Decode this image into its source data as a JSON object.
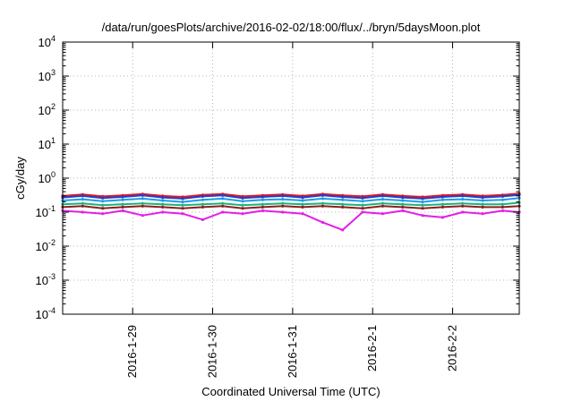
{
  "chart_data": {
    "type": "line",
    "title": "/data/run/goesPlots/archive/2016-02-02/18:00/flux/../bryn/5daysMoon.plot",
    "xlabel": "Coordinated Universal Time (UTC)",
    "ylabel": "cGy/day",
    "yscale": "log",
    "ylim": [
      0.0001,
      10000
    ],
    "xlim": [
      "2016-01-28 03:00",
      "2016-02-02 20:00"
    ],
    "grid": true,
    "legend": "none",
    "x_ticks": [
      {
        "label": "2016-1-29",
        "value": "2016-01-29"
      },
      {
        "label": "2016-1-30",
        "value": "2016-01-30"
      },
      {
        "label": "2016-1-31",
        "value": "2016-01-31"
      },
      {
        "label": "2016-2-1",
        "value": "2016-02-01"
      },
      {
        "label": "2016-2-2",
        "value": "2016-02-02"
      }
    ],
    "y_ticks": [
      {
        "base": "10",
        "exp": "-4",
        "value": 0.0001
      },
      {
        "base": "10",
        "exp": "-3",
        "value": 0.001
      },
      {
        "base": "10",
        "exp": "-2",
        "value": 0.01
      },
      {
        "base": "10",
        "exp": "-1",
        "value": 0.1
      },
      {
        "base": "10",
        "exp": "0",
        "value": 1
      },
      {
        "base": "10",
        "exp": "1",
        "value": 10
      },
      {
        "base": "10",
        "exp": "2",
        "value": 100
      },
      {
        "base": "10",
        "exp": "3",
        "value": 1000
      },
      {
        "base": "10",
        "exp": "4",
        "value": 10000
      }
    ],
    "x": [
      "2016-01-28 03:00",
      "2016-01-28 09:00",
      "2016-01-28 15:00",
      "2016-01-28 21:00",
      "2016-01-29 03:00",
      "2016-01-29 09:00",
      "2016-01-29 15:00",
      "2016-01-29 21:00",
      "2016-01-30 03:00",
      "2016-01-30 09:00",
      "2016-01-30 15:00",
      "2016-01-30 21:00",
      "2016-01-31 03:00",
      "2016-01-31 09:00",
      "2016-01-31 15:00",
      "2016-01-31 21:00",
      "2016-02-01 03:00",
      "2016-02-01 09:00",
      "2016-02-01 15:00",
      "2016-02-01 21:00",
      "2016-02-02 03:00",
      "2016-02-02 09:00",
      "2016-02-02 15:00",
      "2016-02-02 20:00"
    ],
    "series": [
      {
        "color": "#e8151b",
        "values": [
          0.3,
          0.33,
          0.29,
          0.31,
          0.34,
          0.3,
          0.28,
          0.32,
          0.34,
          0.29,
          0.31,
          0.33,
          0.3,
          0.34,
          0.31,
          0.29,
          0.33,
          0.3,
          0.28,
          0.31,
          0.33,
          0.3,
          0.32,
          0.35
        ]
      },
      {
        "color": "#1f3fd0",
        "values": [
          0.27,
          0.3,
          0.26,
          0.28,
          0.31,
          0.27,
          0.25,
          0.29,
          0.31,
          0.26,
          0.28,
          0.3,
          0.27,
          0.31,
          0.28,
          0.26,
          0.3,
          0.27,
          0.25,
          0.28,
          0.3,
          0.27,
          0.29,
          0.32
        ]
      },
      {
        "color": "#1e9be8",
        "values": [
          0.22,
          0.24,
          0.21,
          0.23,
          0.25,
          0.22,
          0.2,
          0.23,
          0.25,
          0.21,
          0.23,
          0.24,
          0.22,
          0.25,
          0.23,
          0.21,
          0.24,
          0.22,
          0.2,
          0.23,
          0.24,
          0.22,
          0.23,
          0.26
        ]
      },
      {
        "color": "#1db37a",
        "values": [
          0.17,
          0.18,
          0.16,
          0.17,
          0.18,
          0.17,
          0.16,
          0.17,
          0.18,
          0.16,
          0.17,
          0.18,
          0.17,
          0.18,
          0.17,
          0.16,
          0.18,
          0.17,
          0.16,
          0.17,
          0.18,
          0.17,
          0.17,
          0.19
        ]
      },
      {
        "color": "#8a2020",
        "values": [
          0.14,
          0.15,
          0.13,
          0.14,
          0.15,
          0.14,
          0.13,
          0.14,
          0.15,
          0.13,
          0.14,
          0.15,
          0.14,
          0.15,
          0.14,
          0.13,
          0.15,
          0.14,
          0.13,
          0.14,
          0.15,
          0.14,
          0.14,
          0.15
        ]
      },
      {
        "color": "#e41ee8",
        "values": [
          0.11,
          0.1,
          0.09,
          0.11,
          0.08,
          0.1,
          0.09,
          0.06,
          0.1,
          0.09,
          0.11,
          0.1,
          0.09,
          0.05,
          0.03,
          0.1,
          0.09,
          0.11,
          0.08,
          0.07,
          0.1,
          0.09,
          0.11,
          0.1
        ]
      }
    ]
  }
}
